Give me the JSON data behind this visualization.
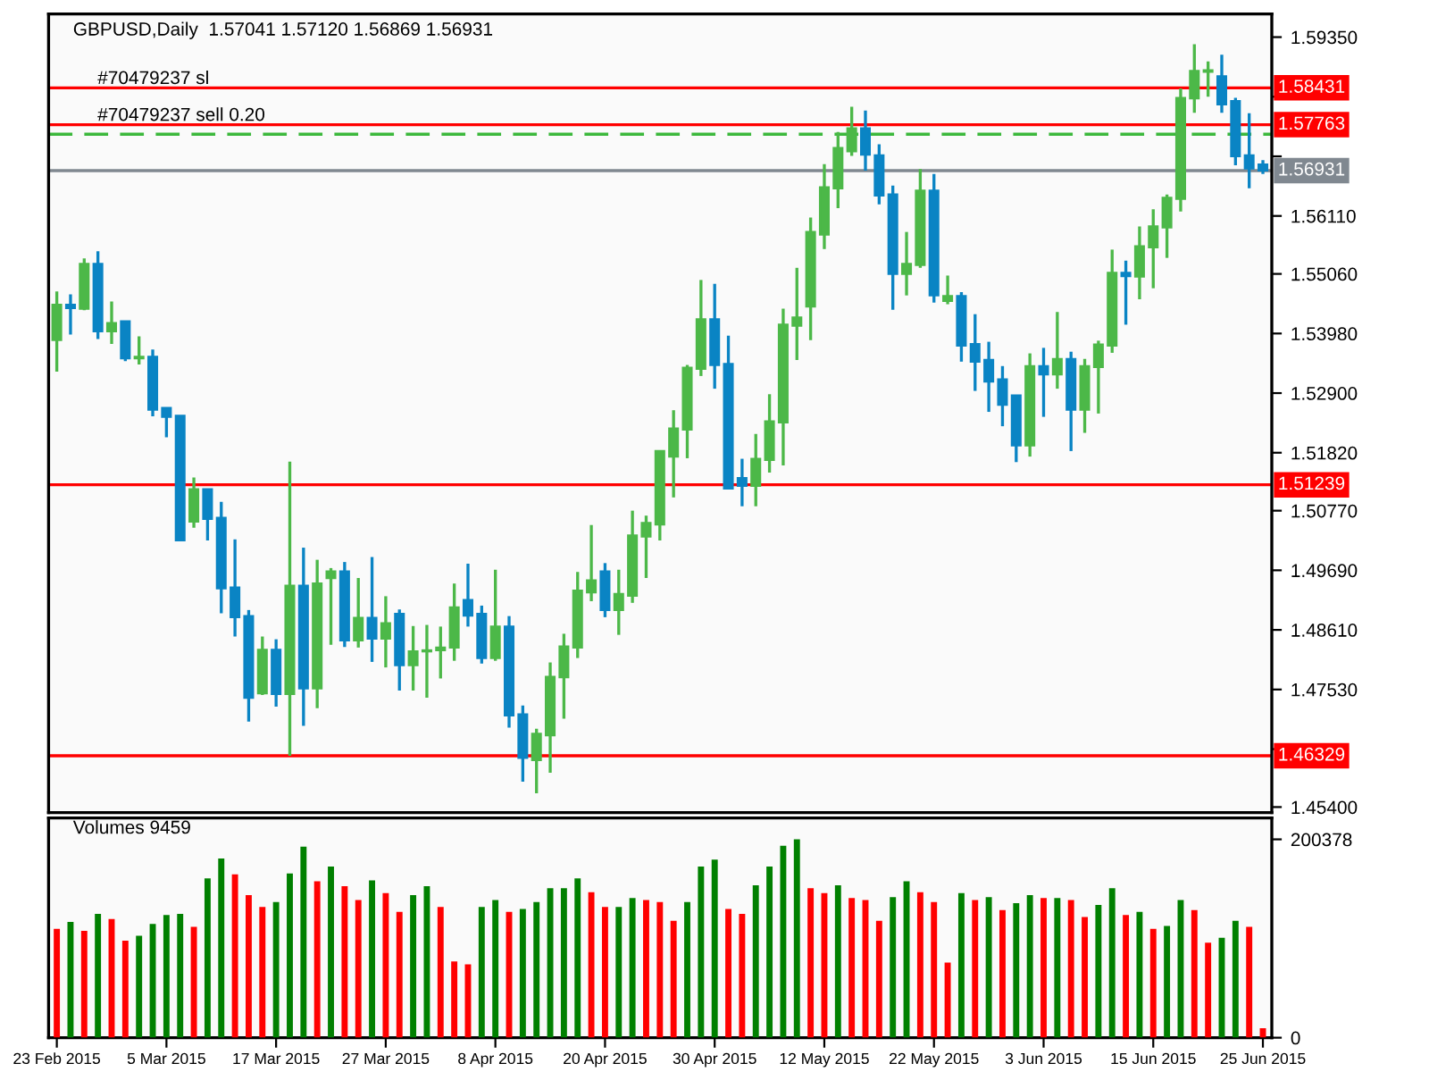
{
  "chart_data": [
    {
      "type": "candlestick",
      "title": "GBPUSD,Daily  1.57041 1.57120 1.56869 1.56931",
      "categories": [
        null,
        null,
        null,
        null,
        null,
        null,
        null,
        null,
        null,
        null,
        null,
        null,
        null,
        null,
        null,
        null,
        null,
        null,
        null,
        null,
        null,
        null,
        null,
        null,
        null,
        null,
        null,
        null,
        null,
        null,
        null,
        null,
        null,
        null,
        null,
        null,
        null,
        null,
        null,
        null,
        null,
        null,
        null,
        null,
        null,
        null,
        null,
        null,
        null,
        null,
        null,
        null,
        null,
        null,
        null,
        null,
        null,
        null,
        null,
        null,
        null,
        null,
        null,
        null,
        null,
        null,
        null,
        null,
        null,
        null,
        null,
        null,
        null,
        null,
        null,
        null,
        null,
        null,
        null,
        null,
        null,
        null,
        null,
        null,
        null,
        null,
        null,
        null,
        null
      ],
      "ohlc": [
        [
          1.5386,
          1.5474,
          1.5329,
          1.545
        ],
        [
          1.545,
          1.5469,
          1.5396,
          1.5444
        ],
        [
          1.5443,
          1.5534,
          1.544,
          1.5524
        ],
        [
          1.5524,
          1.5547,
          1.5388,
          1.5402
        ],
        [
          1.5402,
          1.5456,
          1.5379,
          1.5417
        ],
        [
          1.542,
          1.542,
          1.5348,
          1.5353
        ],
        [
          1.5353,
          1.5393,
          1.5342,
          1.5356
        ],
        [
          1.5356,
          1.5369,
          1.5248,
          1.526
        ],
        [
          1.5263,
          1.5263,
          1.521,
          1.5247
        ],
        [
          1.5249,
          1.5249,
          1.5023,
          1.5023
        ],
        [
          1.5057,
          1.5137,
          1.5046,
          1.5116
        ],
        [
          1.5116,
          1.5116,
          1.5023,
          1.5062
        ],
        [
          1.5064,
          1.5093,
          1.4891,
          1.4936
        ],
        [
          1.4938,
          1.5025,
          1.4849,
          1.4884
        ],
        [
          1.4886,
          1.4897,
          1.4695,
          1.4738
        ],
        [
          1.4746,
          1.4849,
          1.4743,
          1.4825
        ],
        [
          1.4825,
          1.4844,
          1.4722,
          1.4745
        ],
        [
          1.4745,
          1.5166,
          1.4633,
          1.4941
        ],
        [
          1.4941,
          1.501,
          1.4687,
          1.4755
        ],
        [
          1.4755,
          1.4988,
          1.4719,
          1.4945
        ],
        [
          1.4955,
          1.4973,
          1.4834,
          1.4967
        ],
        [
          1.4967,
          1.4984,
          1.483,
          1.4842
        ],
        [
          1.4842,
          1.4955,
          1.4829,
          1.4883
        ],
        [
          1.4883,
          1.4993,
          1.4803,
          1.4845
        ],
        [
          1.4845,
          1.4922,
          1.4793,
          1.4873
        ],
        [
          1.489,
          1.4898,
          1.4751,
          1.4797
        ],
        [
          1.4797,
          1.4868,
          1.4751,
          1.4822
        ],
        [
          1.4822,
          1.487,
          1.4738,
          1.4824
        ],
        [
          1.4824,
          1.4867,
          1.4773,
          1.4829
        ],
        [
          1.4829,
          1.4945,
          1.4805,
          1.4902
        ],
        [
          1.4915,
          1.4981,
          1.4867,
          1.4887
        ],
        [
          1.489,
          1.4905,
          1.48,
          1.481
        ],
        [
          1.481,
          1.497,
          1.4805,
          1.4867
        ],
        [
          1.4867,
          1.4886,
          1.4684,
          1.4706
        ],
        [
          1.4708,
          1.4724,
          1.4586,
          1.4629
        ],
        [
          1.4625,
          1.4682,
          1.4565,
          1.4673
        ],
        [
          1.467,
          1.4802,
          1.4602,
          1.4776
        ],
        [
          1.4775,
          1.4854,
          1.47,
          1.4831
        ],
        [
          1.4829,
          1.4966,
          1.481,
          1.4932
        ],
        [
          1.4929,
          1.5051,
          1.4913,
          1.4951
        ],
        [
          1.4967,
          1.4982,
          1.4884,
          1.4897
        ],
        [
          1.4897,
          1.497,
          1.4852,
          1.4926
        ],
        [
          1.4923,
          1.5077,
          1.491,
          1.5032
        ],
        [
          1.503,
          1.5068,
          1.4955,
          1.5055
        ],
        [
          1.5052,
          1.5185,
          1.5023,
          1.5185
        ],
        [
          1.5175,
          1.5259,
          1.5101,
          1.5226
        ],
        [
          1.5224,
          1.5341,
          1.5172,
          1.5336
        ],
        [
          1.5334,
          1.5495,
          1.5321,
          1.5424
        ],
        [
          1.5424,
          1.5488,
          1.5298,
          1.5341
        ],
        [
          1.5343,
          1.5394,
          1.5117,
          1.5117
        ],
        [
          1.5136,
          1.5171,
          1.5085,
          1.5122
        ],
        [
          1.5122,
          1.5216,
          1.5085,
          1.5171
        ],
        [
          1.5169,
          1.5288,
          1.5146,
          1.5239
        ],
        [
          1.5237,
          1.5443,
          1.5159,
          1.5414
        ],
        [
          1.5412,
          1.5517,
          1.535,
          1.5427
        ],
        [
          1.5447,
          1.5608,
          1.5386,
          1.5582
        ],
        [
          1.5577,
          1.5705,
          1.5551,
          1.5663
        ],
        [
          1.5661,
          1.5763,
          1.5625,
          1.5734
        ],
        [
          1.5728,
          1.5809,
          1.572,
          1.577
        ],
        [
          1.577,
          1.5802,
          1.5693,
          1.5722
        ],
        [
          1.5721,
          1.5741,
          1.5632,
          1.5648
        ],
        [
          1.565,
          1.5666,
          1.5441,
          1.5506
        ],
        [
          1.5506,
          1.5582,
          1.5467,
          1.5524
        ],
        [
          1.5522,
          1.5696,
          1.5517,
          1.5657
        ],
        [
          1.5657,
          1.5687,
          1.5454,
          1.5467
        ],
        [
          1.5457,
          1.5503,
          1.5451,
          1.5466
        ],
        [
          1.5466,
          1.5473,
          1.5347,
          1.5376
        ],
        [
          1.5379,
          1.5433,
          1.5294,
          1.5347
        ],
        [
          1.535,
          1.5383,
          1.5256,
          1.5311
        ],
        [
          1.5315,
          1.5339,
          1.523,
          1.5269
        ],
        [
          1.5286,
          1.5286,
          1.5165,
          1.5195
        ],
        [
          1.5195,
          1.5362,
          1.5175,
          1.5339
        ],
        [
          1.5339,
          1.5372,
          1.5247,
          1.5324
        ],
        [
          1.5324,
          1.5437,
          1.5298,
          1.5352
        ],
        [
          1.5352,
          1.5365,
          1.5185,
          1.526
        ],
        [
          1.526,
          1.5352,
          1.5218,
          1.5339
        ],
        [
          1.5337,
          1.5385,
          1.5253,
          1.5378
        ],
        [
          1.5376,
          1.555,
          1.5363,
          1.5508
        ],
        [
          1.5508,
          1.553,
          1.5414,
          1.5502
        ],
        [
          1.5501,
          1.5592,
          1.546,
          1.5556
        ],
        [
          1.5554,
          1.5623,
          1.548,
          1.5592
        ],
        [
          1.559,
          1.565,
          1.5535,
          1.5644
        ],
        [
          1.5642,
          1.5842,
          1.5619,
          1.5825
        ],
        [
          1.5824,
          1.5922,
          1.5798,
          1.5874
        ],
        [
          1.5872,
          1.5891,
          1.5827,
          1.5875
        ],
        [
          1.5864,
          1.5903,
          1.5798,
          1.5813
        ],
        [
          1.5819,
          1.5825,
          1.5703,
          1.5719
        ],
        [
          1.5721,
          1.5797,
          1.5661,
          1.5697
        ],
        [
          1.57041,
          1.5712,
          1.56869,
          1.56931
        ]
      ],
      "colors": [
        "#4cb848",
        "#0a84c4",
        "#4cb848",
        "#0a84c4",
        "#4cb848",
        "#0a84c4",
        "#4cb848",
        "#0a84c4",
        "#0a84c4",
        "#0a84c4",
        "#4cb848",
        "#0a84c4",
        "#0a84c4",
        "#0a84c4",
        "#0a84c4",
        "#4cb848",
        "#0a84c4",
        "#4cb848",
        "#0a84c4",
        "#4cb848",
        "#4cb848",
        "#0a84c4",
        "#4cb848",
        "#0a84c4",
        "#4cb848",
        "#0a84c4",
        "#4cb848",
        "#4cb848",
        "#4cb848",
        "#4cb848",
        "#0a84c4",
        "#0a84c4",
        "#4cb848",
        "#0a84c4",
        "#0a84c4",
        "#4cb848",
        "#4cb848",
        "#4cb848",
        "#4cb848",
        "#4cb848",
        "#0a84c4",
        "#4cb848",
        "#4cb848",
        "#4cb848",
        "#4cb848",
        "#4cb848",
        "#4cb848",
        "#4cb848",
        "#0a84c4",
        "#0a84c4",
        "#0a84c4",
        "#4cb848",
        "#4cb848",
        "#4cb848",
        "#4cb848",
        "#4cb848",
        "#4cb848",
        "#4cb848",
        "#4cb848",
        "#0a84c4",
        "#0a84c4",
        "#0a84c4",
        "#4cb848",
        "#4cb848",
        "#0a84c4",
        "#4cb848",
        "#0a84c4",
        "#0a84c4",
        "#0a84c4",
        "#0a84c4",
        "#0a84c4",
        "#4cb848",
        "#0a84c4",
        "#4cb848",
        "#0a84c4",
        "#4cb848",
        "#4cb848",
        "#4cb848",
        "#0a84c4",
        "#4cb848",
        "#4cb848",
        "#4cb848",
        "#4cb848",
        "#4cb848",
        "#4cb848",
        "#0a84c4",
        "#0a84c4",
        "#0a84c4",
        "#0a84c4"
      ],
      "ylim": [
        1.453,
        1.5977
      ],
      "yticks": [
        {
          "value": 1.5935,
          "label": "1.59350"
        },
        {
          "value": 1.5827,
          "label": null
        },
        {
          "value": 1.5719,
          "label": null
        },
        {
          "value": 1.5611,
          "label": "1.56110"
        },
        {
          "value": 1.5506,
          "label": "1.55060"
        },
        {
          "value": 1.5398,
          "label": "1.53980"
        },
        {
          "value": 1.529,
          "label": "1.52900"
        },
        {
          "value": 1.5182,
          "label": "1.51820"
        },
        {
          "value": 1.5077,
          "label": "1.50770"
        },
        {
          "value": 1.4969,
          "label": "1.49690"
        },
        {
          "value": 1.4861,
          "label": "1.48610"
        },
        {
          "value": 1.4753,
          "label": "1.47530"
        },
        {
          "value": 1.4645,
          "label": null
        },
        {
          "value": 1.454,
          "label": "1.45400"
        }
      ],
      "ref_lines": [
        {
          "axis": "y",
          "value": 1.58431,
          "label": "1.58431",
          "color": "#ff0000",
          "line_style": "solid"
        },
        {
          "axis": "y",
          "value": 1.57763,
          "label": "1.57763",
          "color": "#ff0000",
          "line_style": "solid"
        },
        {
          "axis": "y",
          "value": 1.5759,
          "color": "#3cb83c",
          "line_style": "dashed"
        },
        {
          "axis": "y",
          "value": 1.56931,
          "label": "1.56931",
          "color": "#808890",
          "line_style": "solid"
        },
        {
          "axis": "y",
          "value": 1.51239,
          "label": "1.51239",
          "color": "#ff0000",
          "line_style": "solid"
        },
        {
          "axis": "y",
          "value": 1.46329,
          "label": "1.46329",
          "color": "#ff0000",
          "line_style": "solid"
        }
      ],
      "annotations": [
        {
          "text": "#70479237 sl",
          "y": 1.58431
        },
        {
          "text": "#70479237 sell 0.20",
          "y": 1.57763
        }
      ],
      "tick_labels": "y",
      "grid": false,
      "legend": false
    },
    {
      "type": "bar",
      "title": "Volumes 9459",
      "categories": [
        "23 Feb 2015",
        null,
        null,
        null,
        null,
        null,
        null,
        null,
        "5 Mar 2015",
        null,
        null,
        null,
        null,
        null,
        null,
        null,
        "17 Mar 2015",
        null,
        null,
        null,
        null,
        null,
        null,
        null,
        "27 Mar 2015",
        null,
        null,
        null,
        null,
        null,
        null,
        null,
        "8 Apr 2015",
        null,
        null,
        null,
        null,
        null,
        null,
        null,
        "20 Apr 2015",
        null,
        null,
        null,
        null,
        null,
        null,
        null,
        "30 Apr 2015",
        null,
        null,
        null,
        null,
        null,
        null,
        null,
        "12 May 2015",
        null,
        null,
        null,
        null,
        null,
        null,
        null,
        "22 May 2015",
        null,
        null,
        null,
        null,
        null,
        null,
        null,
        "3 Jun 2015",
        null,
        null,
        null,
        null,
        null,
        null,
        null,
        "15 Jun 2015",
        null,
        null,
        null,
        null,
        null,
        null,
        null,
        "25 Jun 2015"
      ],
      "values": [
        110000,
        117000,
        108000,
        125000,
        120000,
        98000,
        103000,
        115000,
        124000,
        125000,
        112000,
        161000,
        181000,
        165000,
        144000,
        132000,
        137000,
        166000,
        193000,
        158000,
        173000,
        153000,
        139000,
        159000,
        146000,
        127000,
        144000,
        153000,
        132000,
        77000,
        74000,
        132000,
        139000,
        127000,
        130000,
        137000,
        151000,
        151000,
        161000,
        147000,
        132000,
        132000,
        141000,
        139000,
        137000,
        118000,
        137000,
        173000,
        180000,
        130000,
        125000,
        154000,
        173000,
        194000,
        200378,
        151000,
        146000,
        154000,
        141000,
        139000,
        118000,
        142000,
        158000,
        147000,
        137000,
        76000,
        146000,
        139000,
        142000,
        129000,
        136000,
        144000,
        141000,
        141000,
        139000,
        122000,
        134000,
        151000,
        124000,
        127000,
        110000,
        113000,
        139000,
        129000,
        96000,
        101000,
        118000,
        112000,
        9459
      ],
      "colors": [
        "#ff0000",
        "#008000",
        "#ff0000",
        "#008000",
        "#ff0000",
        "#ff0000",
        "#008000",
        "#008000",
        "#008000",
        "#008000",
        "#ff0000",
        "#008000",
        "#008000",
        "#ff0000",
        "#ff0000",
        "#ff0000",
        "#008000",
        "#008000",
        "#008000",
        "#ff0000",
        "#008000",
        "#ff0000",
        "#ff0000",
        "#008000",
        "#ff0000",
        "#ff0000",
        "#008000",
        "#008000",
        "#ff0000",
        "#ff0000",
        "#ff0000",
        "#008000",
        "#008000",
        "#ff0000",
        "#008000",
        "#008000",
        "#008000",
        "#008000",
        "#008000",
        "#ff0000",
        "#ff0000",
        "#008000",
        "#008000",
        "#ff0000",
        "#ff0000",
        "#ff0000",
        "#008000",
        "#008000",
        "#008000",
        "#ff0000",
        "#ff0000",
        "#008000",
        "#008000",
        "#008000",
        "#008000",
        "#ff0000",
        "#ff0000",
        "#008000",
        "#ff0000",
        "#ff0000",
        "#ff0000",
        "#008000",
        "#008000",
        "#ff0000",
        "#ff0000",
        "#ff0000",
        "#008000",
        "#ff0000",
        "#008000",
        "#ff0000",
        "#008000",
        "#008000",
        "#ff0000",
        "#008000",
        "#ff0000",
        "#ff0000",
        "#008000",
        "#008000",
        "#ff0000",
        "#008000",
        "#ff0000",
        "#008000",
        "#008000",
        "#ff0000",
        "#ff0000",
        "#008000",
        "#008000",
        "#ff0000",
        "#ff0000"
      ],
      "ylim": [
        0,
        222000
      ],
      "yticks": [
        0,
        200378
      ],
      "grid": false,
      "legend": false
    }
  ]
}
